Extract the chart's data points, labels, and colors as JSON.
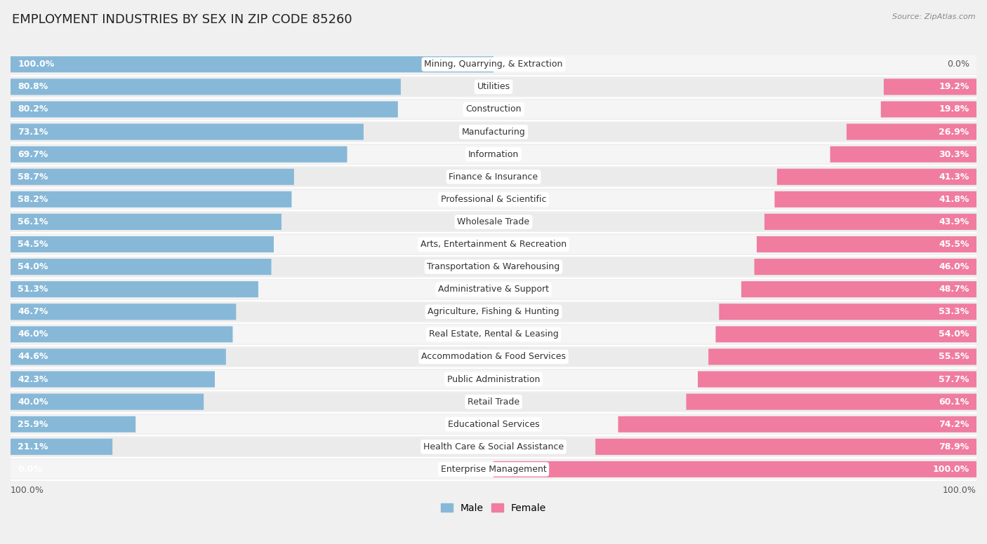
{
  "title": "EMPLOYMENT INDUSTRIES BY SEX IN ZIP CODE 85260",
  "source": "Source: ZipAtlas.com",
  "categories": [
    "Mining, Quarrying, & Extraction",
    "Utilities",
    "Construction",
    "Manufacturing",
    "Information",
    "Finance & Insurance",
    "Professional & Scientific",
    "Wholesale Trade",
    "Arts, Entertainment & Recreation",
    "Transportation & Warehousing",
    "Administrative & Support",
    "Agriculture, Fishing & Hunting",
    "Real Estate, Rental & Leasing",
    "Accommodation & Food Services",
    "Public Administration",
    "Retail Trade",
    "Educational Services",
    "Health Care & Social Assistance",
    "Enterprise Management"
  ],
  "male": [
    100.0,
    80.8,
    80.2,
    73.1,
    69.7,
    58.7,
    58.2,
    56.1,
    54.5,
    54.0,
    51.3,
    46.7,
    46.0,
    44.6,
    42.3,
    40.0,
    25.9,
    21.1,
    0.0
  ],
  "female": [
    0.0,
    19.2,
    19.8,
    26.9,
    30.3,
    41.3,
    41.8,
    43.9,
    45.5,
    46.0,
    48.7,
    53.3,
    54.0,
    55.5,
    57.7,
    60.1,
    74.2,
    78.9,
    100.0
  ],
  "male_color": "#87b8d8",
  "female_color": "#f07ca0",
  "background_color": "#f0f0f0",
  "bar_background": "#dcdcdc",
  "row_bg_odd": "#f5f5f5",
  "row_bg_even": "#ebebeb",
  "title_fontsize": 13,
  "label_fontsize": 9,
  "value_fontsize": 9,
  "legend_fontsize": 10
}
